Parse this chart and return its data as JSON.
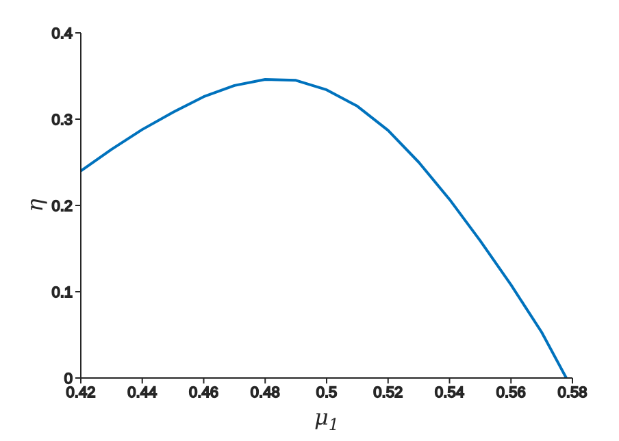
{
  "chart_data": {
    "type": "line",
    "xlabel": "μ$_{1}$",
    "ylabel": "η",
    "x": [
      0.42,
      0.43,
      0.44,
      0.45,
      0.46,
      0.47,
      0.48,
      0.49,
      0.5,
      0.51,
      0.52,
      0.53,
      0.54,
      0.55,
      0.56,
      0.57,
      0.578
    ],
    "series": [
      {
        "color": "#0072bd",
        "values": [
          0.24,
          0.265,
          0.288,
          0.308,
          0.326,
          0.339,
          0.346,
          0.345,
          0.334,
          0.315,
          0.287,
          0.25,
          0.207,
          0.159,
          0.108,
          0.053,
          0
        ]
      }
    ],
    "xlim": [
      0.42,
      0.58
    ],
    "xticks": [
      0.42,
      0.44,
      0.46,
      0.48,
      {
        "value": 0.5,
        "label": "0.5"
      },
      0.52,
      0.54,
      0.56,
      0.58
    ],
    "ylim": [
      0,
      0.4
    ],
    "yticks": [
      0,
      0.1,
      0.2,
      0.3,
      0.4
    ],
    "grid": false,
    "legend": false,
    "marker": "none",
    "line_style": "solid"
  }
}
